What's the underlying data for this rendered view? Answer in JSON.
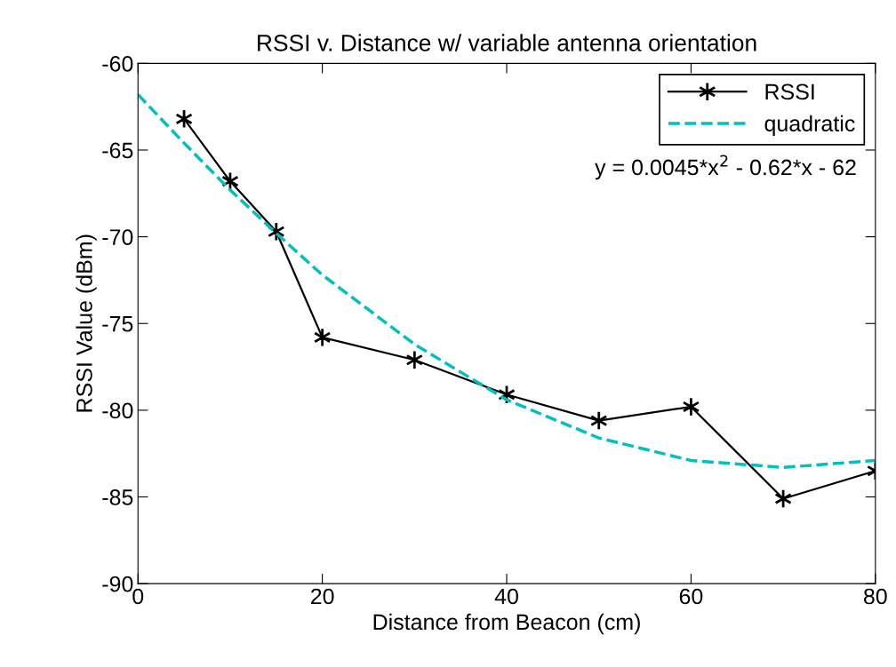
{
  "chart_data": {
    "type": "line",
    "title": "RSSI v. Distance w/ variable antenna orientation",
    "xlabel": "Distance from Beacon (cm)",
    "ylabel": "RSSI Value (dBm)",
    "x": [
      5,
      10,
      15,
      20,
      30,
      40,
      50,
      60,
      70,
      80
    ],
    "series": [
      {
        "name": "RSSI",
        "color": "#000000",
        "marker": "cross",
        "line_style": "solid",
        "values": [
          -63.2,
          -66.8,
          -69.7,
          -75.8,
          -77.1,
          -79.1,
          -80.6,
          -79.8,
          -85.1,
          -83.5
        ]
      },
      {
        "name": "quadratic",
        "type": "line",
        "color": "#00bfbf",
        "marker": "none",
        "line_style": "dashed",
        "x": [
          0,
          5,
          10,
          15,
          20,
          30,
          40,
          50,
          60,
          70,
          80
        ],
        "values": [
          -61.8,
          -64.6,
          -67.3,
          -69.8,
          -72.2,
          -76.2,
          -79.4,
          -81.6,
          -82.9,
          -83.3,
          -82.9
        ]
      }
    ],
    "annotations": [
      "y = 0.0045*x$^{2}$ - 0.62*x - 62"
    ],
    "xlim": [
      0,
      80
    ],
    "xticks": [
      0,
      20,
      40,
      60,
      80
    ],
    "ylim": [
      -90,
      -60
    ],
    "yticks": [
      -90,
      -85,
      -80,
      -75,
      -70,
      -65,
      -60
    ],
    "grid": false,
    "legend": "top right"
  }
}
